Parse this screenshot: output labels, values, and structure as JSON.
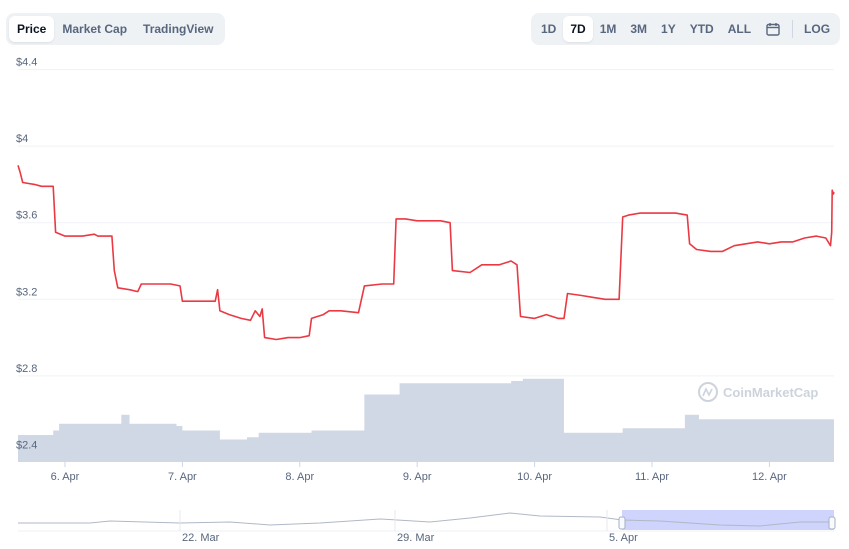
{
  "tabs": {
    "items": [
      {
        "label": "Price",
        "active": true
      },
      {
        "label": "Market Cap",
        "active": false
      },
      {
        "label": "TradingView",
        "active": false
      }
    ]
  },
  "ranges": {
    "items": [
      {
        "label": "1D",
        "active": false
      },
      {
        "label": "7D",
        "active": true
      },
      {
        "label": "1M",
        "active": false
      },
      {
        "label": "3M",
        "active": false
      },
      {
        "label": "1Y",
        "active": false
      },
      {
        "label": "YTD",
        "active": false
      },
      {
        "label": "ALL",
        "active": false
      }
    ],
    "calendar_icon": "calendar-icon",
    "log_label": "LOG"
  },
  "watermark": "CoinMarketCap",
  "colors": {
    "line": "#ea3943",
    "volume": "#cfd6e4",
    "navigator_selection": "#c7cdfb",
    "grid": "#eff2f5",
    "text": "#58667e"
  },
  "navigator": {
    "tick_labels": [
      "22. Mar",
      "29. Mar",
      "5. Apr"
    ]
  },
  "chart_data": {
    "type": "line",
    "title": "",
    "xlabel": "",
    "ylabel": "",
    "y_tick_labels": [
      "$2.4",
      "$2.8",
      "$3.2",
      "$3.6",
      "$4",
      "$4.4"
    ],
    "y_ticks": [
      2.4,
      2.8,
      3.2,
      3.6,
      4.0,
      4.4
    ],
    "ylim": [
      2.35,
      4.45
    ],
    "x_tick_labels": [
      "6. Apr",
      "7. Apr",
      "8. Apr",
      "9. Apr",
      "10. Apr",
      "11. Apr",
      "12. Apr"
    ],
    "x_ticks": [
      6.0,
      7.0,
      8.0,
      9.0,
      10.0,
      11.0,
      12.0
    ],
    "xlim": [
      5.6,
      12.55
    ],
    "grid": true,
    "series": [
      {
        "type": "line",
        "points": [
          [
            5.6,
            3.9
          ],
          [
            5.62,
            3.86
          ],
          [
            5.64,
            3.81
          ],
          [
            5.74,
            3.8
          ],
          [
            5.8,
            3.79
          ],
          [
            5.9,
            3.79
          ],
          [
            5.92,
            3.55
          ],
          [
            6.0,
            3.53
          ],
          [
            6.15,
            3.53
          ],
          [
            6.25,
            3.54
          ],
          [
            6.28,
            3.53
          ],
          [
            6.4,
            3.53
          ],
          [
            6.42,
            3.35
          ],
          [
            6.45,
            3.26
          ],
          [
            6.55,
            3.25
          ],
          [
            6.62,
            3.24
          ],
          [
            6.65,
            3.28
          ],
          [
            6.75,
            3.28
          ],
          [
            6.9,
            3.28
          ],
          [
            6.98,
            3.27
          ],
          [
            7.0,
            3.19
          ],
          [
            7.1,
            3.19
          ],
          [
            7.2,
            3.19
          ],
          [
            7.28,
            3.19
          ],
          [
            7.3,
            3.25
          ],
          [
            7.32,
            3.14
          ],
          [
            7.4,
            3.12
          ],
          [
            7.5,
            3.1
          ],
          [
            7.58,
            3.09
          ],
          [
            7.62,
            3.14
          ],
          [
            7.66,
            3.11
          ],
          [
            7.68,
            3.15
          ],
          [
            7.7,
            3.0
          ],
          [
            7.8,
            2.99
          ],
          [
            7.9,
            3.0
          ],
          [
            8.0,
            3.0
          ],
          [
            8.08,
            3.01
          ],
          [
            8.1,
            3.1
          ],
          [
            8.2,
            3.12
          ],
          [
            8.25,
            3.14
          ],
          [
            8.35,
            3.14
          ],
          [
            8.5,
            3.13
          ],
          [
            8.55,
            3.27
          ],
          [
            8.7,
            3.28
          ],
          [
            8.8,
            3.28
          ],
          [
            8.82,
            3.62
          ],
          [
            8.9,
            3.62
          ],
          [
            9.0,
            3.61
          ],
          [
            9.1,
            3.61
          ],
          [
            9.2,
            3.61
          ],
          [
            9.28,
            3.6
          ],
          [
            9.3,
            3.35
          ],
          [
            9.45,
            3.34
          ],
          [
            9.55,
            3.38
          ],
          [
            9.7,
            3.38
          ],
          [
            9.8,
            3.4
          ],
          [
            9.85,
            3.38
          ],
          [
            9.88,
            3.11
          ],
          [
            10.0,
            3.1
          ],
          [
            10.1,
            3.12
          ],
          [
            10.2,
            3.1
          ],
          [
            10.25,
            3.1
          ],
          [
            10.28,
            3.23
          ],
          [
            10.4,
            3.22
          ],
          [
            10.5,
            3.21
          ],
          [
            10.6,
            3.2
          ],
          [
            10.72,
            3.2
          ],
          [
            10.75,
            3.63
          ],
          [
            10.8,
            3.64
          ],
          [
            10.9,
            3.65
          ],
          [
            11.0,
            3.65
          ],
          [
            11.1,
            3.65
          ],
          [
            11.2,
            3.65
          ],
          [
            11.3,
            3.64
          ],
          [
            11.32,
            3.49
          ],
          [
            11.38,
            3.46
          ],
          [
            11.5,
            3.45
          ],
          [
            11.6,
            3.45
          ],
          [
            11.7,
            3.48
          ],
          [
            11.8,
            3.49
          ],
          [
            11.9,
            3.5
          ],
          [
            12.0,
            3.49
          ],
          [
            12.1,
            3.5
          ],
          [
            12.2,
            3.5
          ],
          [
            12.3,
            3.52
          ],
          [
            12.4,
            3.53
          ],
          [
            12.48,
            3.52
          ],
          [
            12.52,
            3.48
          ],
          [
            12.53,
            3.55
          ],
          [
            12.535,
            3.77
          ],
          [
            12.545,
            3.75
          ],
          [
            12.55,
            3.76
          ]
        ]
      },
      {
        "name": "",
        "type": "area",
        "description": "volume (unscaled relative units)",
        "points": [
          [
            5.6,
            12
          ],
          [
            5.9,
            14
          ],
          [
            5.95,
            17
          ],
          [
            6.4,
            17
          ],
          [
            6.48,
            21
          ],
          [
            6.55,
            17
          ],
          [
            6.95,
            16
          ],
          [
            7.0,
            14
          ],
          [
            7.32,
            10
          ],
          [
            7.55,
            11
          ],
          [
            7.65,
            13
          ],
          [
            8.1,
            14
          ],
          [
            8.55,
            30
          ],
          [
            8.85,
            35
          ],
          [
            9.8,
            36
          ],
          [
            9.9,
            37
          ],
          [
            10.25,
            13
          ],
          [
            10.75,
            15
          ],
          [
            11.28,
            21
          ],
          [
            11.4,
            19
          ],
          [
            12.55,
            19
          ]
        ]
      }
    ]
  }
}
